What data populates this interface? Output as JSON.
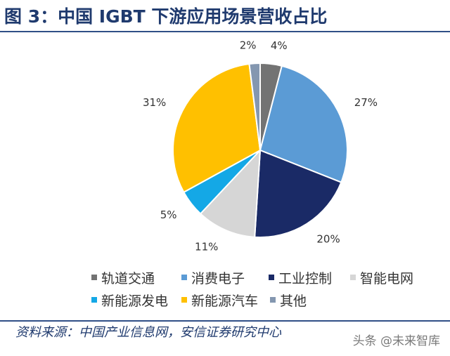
{
  "title": "图 3：中国 IGBT 下游应用场景营收占比",
  "source_note": "资料来源：中国产业信息网，安信证券研究中心",
  "watermark": "头条 @未来智库",
  "chart_data": {
    "type": "pie",
    "unit": "%",
    "slices": [
      {
        "label": "轨道交通",
        "value": 4,
        "color": "#737373"
      },
      {
        "label": "消费电子",
        "value": 27,
        "color": "#5b9bd5"
      },
      {
        "label": "工业控制",
        "value": 20,
        "color": "#1a2a66"
      },
      {
        "label": "智能电网",
        "value": 11,
        "color": "#d6d6d6"
      },
      {
        "label": "新能源发电",
        "value": 5,
        "color": "#14a8e6"
      },
      {
        "label": "新能源汽车",
        "value": 31,
        "color": "#ffc000"
      },
      {
        "label": "其他",
        "value": 2,
        "color": "#8497b0"
      }
    ],
    "legend_position": "bottom"
  }
}
